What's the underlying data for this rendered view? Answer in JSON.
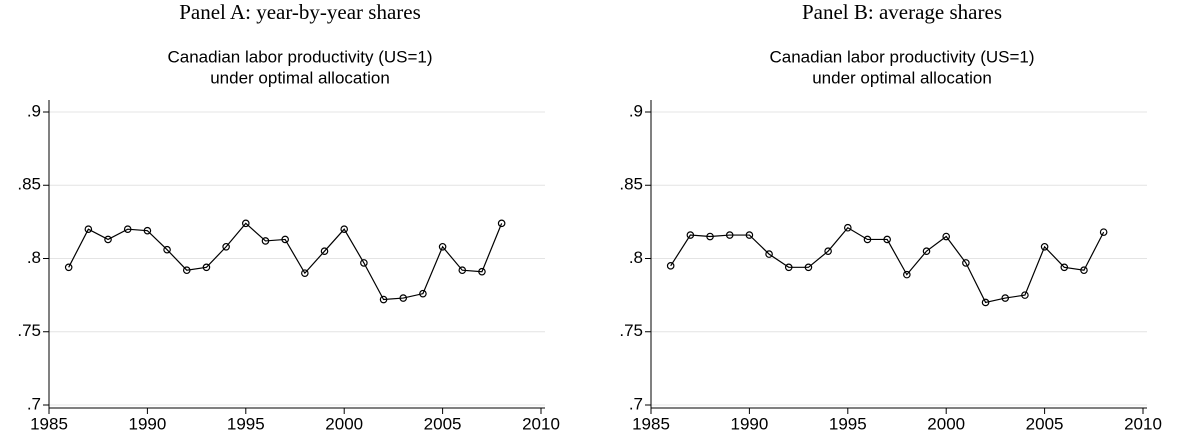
{
  "chart_data": [
    {
      "type": "line",
      "suptitle": "Panel A: year-by-year shares",
      "title": [
        "Canadian labor productivity (US=1)",
        "under optimal allocation"
      ],
      "x": [
        1986,
        1987,
        1988,
        1989,
        1990,
        1991,
        1992,
        1993,
        1994,
        1995,
        1996,
        1997,
        1998,
        1999,
        2000,
        2001,
        2002,
        2003,
        2004,
        2005,
        2006,
        2007,
        2008
      ],
      "values": [
        0.794,
        0.82,
        0.813,
        0.82,
        0.819,
        0.806,
        0.792,
        0.794,
        0.808,
        0.824,
        0.812,
        0.813,
        0.79,
        0.805,
        0.82,
        0.797,
        0.772,
        0.773,
        0.776,
        0.808,
        0.792,
        0.791,
        0.824
      ],
      "color": "#000000",
      "xlim": [
        1985,
        2010
      ],
      "xticks": [
        1985,
        1990,
        1995,
        2000,
        2005,
        2010
      ],
      "ylim": [
        0.7,
        0.9
      ],
      "yticks": [
        {
          "value": 0.7,
          "label": ".7"
        },
        {
          "value": 0.75,
          "label": ".75"
        },
        {
          "value": 0.8,
          "label": ".8"
        },
        {
          "value": 0.85,
          "label": ".85"
        },
        {
          "value": 0.9,
          "label": ".9"
        }
      ],
      "grid": true
    },
    {
      "type": "line",
      "suptitle": "Panel B: average shares",
      "title": [
        "Canadian labor productivity (US=1)",
        "under optimal allocation"
      ],
      "x": [
        1986,
        1987,
        1988,
        1989,
        1990,
        1991,
        1992,
        1993,
        1994,
        1995,
        1996,
        1997,
        1998,
        1999,
        2000,
        2001,
        2002,
        2003,
        2004,
        2005,
        2006,
        2007,
        2008
      ],
      "values": [
        0.795,
        0.816,
        0.815,
        0.816,
        0.816,
        0.803,
        0.794,
        0.794,
        0.805,
        0.821,
        0.813,
        0.813,
        0.789,
        0.805,
        0.815,
        0.797,
        0.77,
        0.773,
        0.775,
        0.808,
        0.794,
        0.792,
        0.818
      ],
      "color": "#000000",
      "xlim": [
        1985,
        2010
      ],
      "xticks": [
        1985,
        1990,
        1995,
        2000,
        2005,
        2010
      ],
      "ylim": [
        0.7,
        0.9
      ],
      "yticks": [
        {
          "value": 0.7,
          "label": ".7"
        },
        {
          "value": 0.75,
          "label": ".75"
        },
        {
          "value": 0.8,
          "label": ".8"
        },
        {
          "value": 0.85,
          "label": ".85"
        },
        {
          "value": 0.9,
          "label": ".9"
        }
      ],
      "grid": true
    }
  ]
}
